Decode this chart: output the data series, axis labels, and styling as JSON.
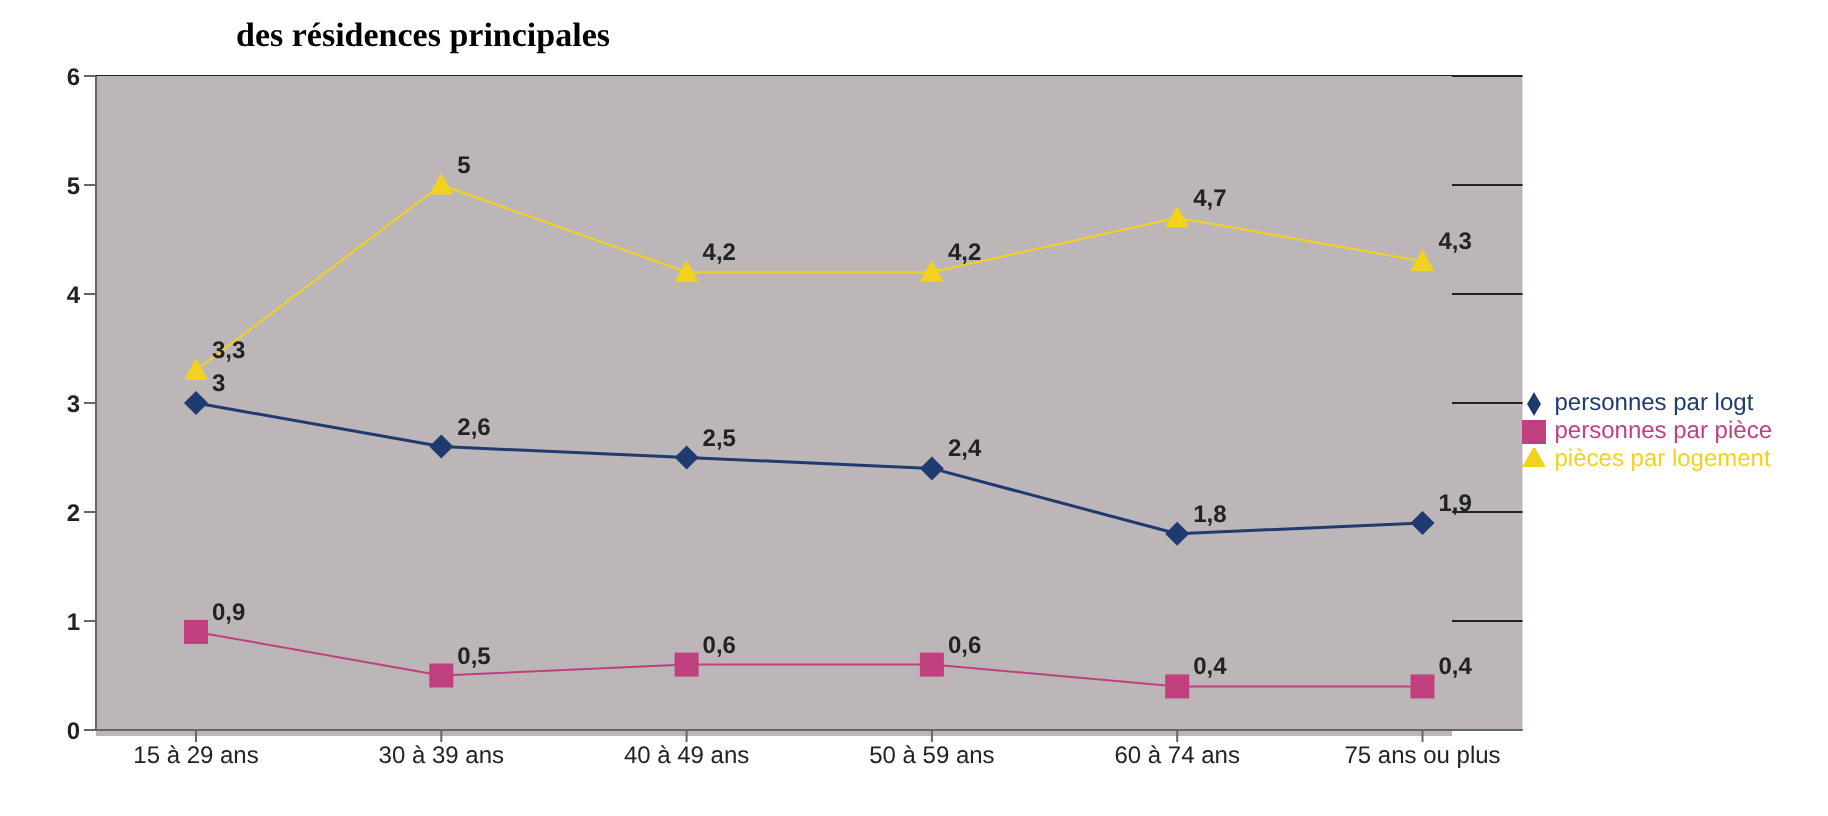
{
  "chart_data": {
    "type": "line",
    "title": "des résidences principales",
    "categories": [
      "15 à 29 ans",
      "30 à 39 ans",
      "40 à 49 ans",
      "50 à 59 ans",
      "60 à 74 ans",
      "75 ans ou plus"
    ],
    "series": [
      {
        "name": "personnes par logt",
        "color": "#1f3a6e",
        "marker": "diamond",
        "values": [
          3,
          2.6,
          2.5,
          2.4,
          1.8,
          1.9
        ],
        "value_labels": [
          "3",
          "2,6",
          "2,5",
          "2,4",
          "1,8",
          "1,9"
        ]
      },
      {
        "name": "personnes par pièce",
        "color": "#c0407f",
        "marker": "square",
        "values": [
          0.9,
          0.5,
          0.6,
          0.6,
          0.4,
          0.4
        ],
        "value_labels": [
          "0,9",
          "0,5",
          "0,6",
          "0,6",
          "0,4",
          "0,4"
        ]
      },
      {
        "name": "pièces par logement",
        "color": "#f2d21c",
        "marker": "triangle",
        "values": [
          3.3,
          5,
          4.2,
          4.2,
          4.7,
          4.3
        ],
        "value_labels": [
          "3,3",
          "5",
          "4,2",
          "4,2",
          "4,7",
          "4,3"
        ]
      }
    ],
    "ylim": [
      0,
      6
    ],
    "yticks": [
      0,
      1,
      2,
      3,
      4,
      5,
      6
    ],
    "grid": "y",
    "legend": "right"
  }
}
